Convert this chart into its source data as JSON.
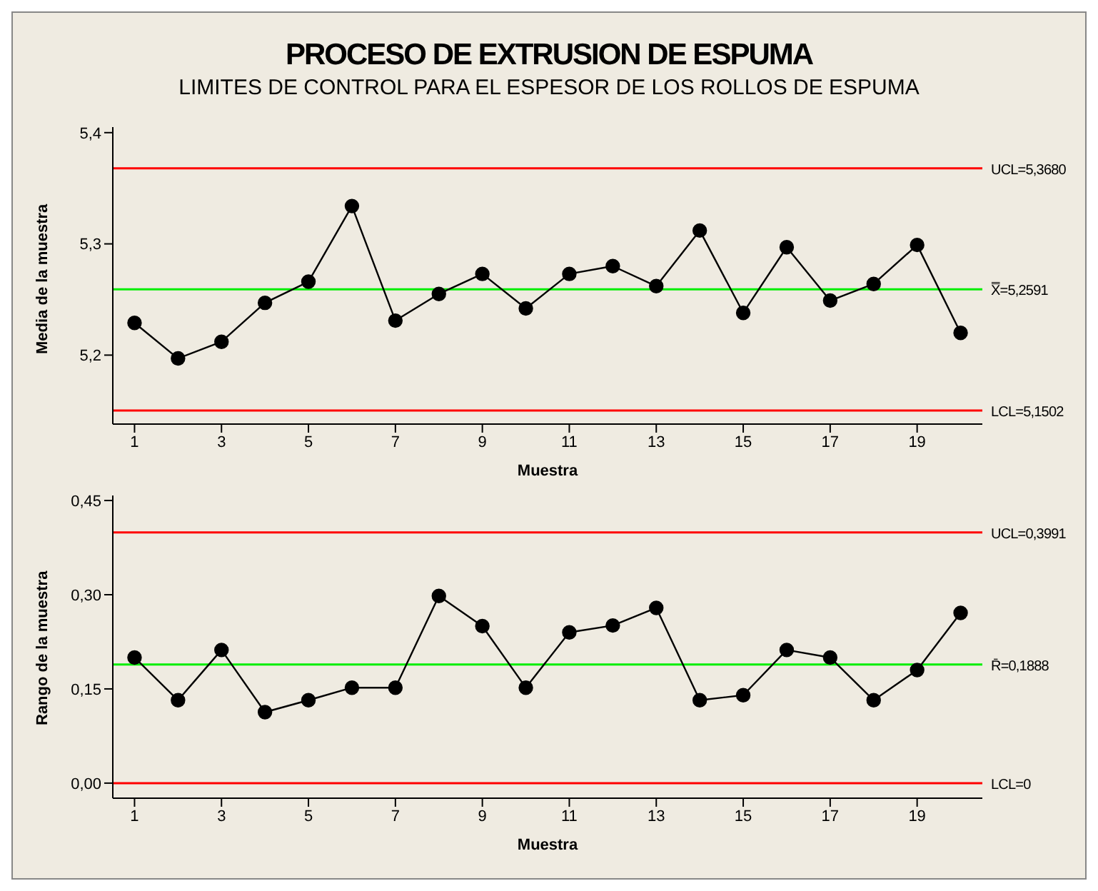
{
  "chart_data": [
    {
      "type": "line",
      "title": "PROCESO DE EXTRUSION DE ESPUMA",
      "subtitle": "LIMITES DE CONTROL PARA EL ESPESOR DE LOS ROLLOS DE ESPUMA",
      "xlabel": "Muestra",
      "ylabel": "Media de la muestra",
      "x": [
        1,
        2,
        3,
        4,
        5,
        6,
        7,
        8,
        9,
        10,
        11,
        12,
        13,
        14,
        15,
        16,
        17,
        18,
        19,
        20
      ],
      "series": [
        {
          "color": "#000000",
          "values": [
            5.229,
            5.197,
            5.212,
            5.247,
            5.266,
            5.334,
            5.231,
            5.255,
            5.273,
            5.242,
            5.273,
            5.28,
            5.262,
            5.312,
            5.238,
            5.297,
            5.249,
            5.264,
            5.299,
            5.22
          ]
        }
      ],
      "xlim": [
        0.5,
        20.5
      ],
      "xticks": [
        1,
        3,
        5,
        7,
        9,
        11,
        13,
        15,
        17,
        19
      ],
      "ylim": [
        5.138,
        5.405
      ],
      "yticks": [
        {
          "value": 5.2,
          "label": "5,2"
        },
        {
          "value": 5.3,
          "label": "5,3"
        },
        {
          "value": 5.4,
          "label": "5,4"
        }
      ],
      "ref_lines": [
        {
          "axis": "y",
          "value": 5.368,
          "label": "UCL=5,3680",
          "color": "#ff0000"
        },
        {
          "axis": "y",
          "value": 5.2591,
          "label": "X̿=5,2591",
          "color": "#00ee00"
        },
        {
          "axis": "y",
          "value": 5.1502,
          "label": "LCL=5,1502",
          "color": "#ff0000"
        }
      ],
      "grid": false,
      "legend": false,
      "marker": "circle",
      "line_style": "solid"
    },
    {
      "type": "line",
      "xlabel": "Muestra",
      "ylabel": "Rango de la muestra",
      "x": [
        1,
        2,
        3,
        4,
        5,
        6,
        7,
        8,
        9,
        10,
        11,
        12,
        13,
        14,
        15,
        16,
        17,
        18,
        19,
        20
      ],
      "series": [
        {
          "color": "#000000",
          "values": [
            0.2,
            0.132,
            0.212,
            0.113,
            0.132,
            0.152,
            0.152,
            0.298,
            0.25,
            0.152,
            0.24,
            0.251,
            0.279,
            0.132,
            0.14,
            0.212,
            0.2,
            0.132,
            0.18,
            0.271
          ]
        }
      ],
      "xlim": [
        0.5,
        20.5
      ],
      "xticks": [
        1,
        3,
        5,
        7,
        9,
        11,
        13,
        15,
        17,
        19
      ],
      "ylim": [
        -0.024,
        0.458
      ],
      "yticks": [
        {
          "value": 0,
          "label": "0,00"
        },
        {
          "value": 0.15,
          "label": "0,15"
        },
        {
          "value": 0.3,
          "label": "0,30"
        },
        {
          "value": 0.45,
          "label": "0,45"
        }
      ],
      "ref_lines": [
        {
          "axis": "y",
          "value": 0.3991,
          "label": "UCL=0,3991",
          "color": "#ff0000"
        },
        {
          "axis": "y",
          "value": 0.1888,
          "label": "R̄=0,1888",
          "color": "#00ee00"
        },
        {
          "axis": "y",
          "value": 0,
          "label": "LCL=0",
          "color": "#ff0000"
        }
      ],
      "grid": false,
      "legend": false,
      "marker": "circle",
      "line_style": "solid"
    }
  ]
}
